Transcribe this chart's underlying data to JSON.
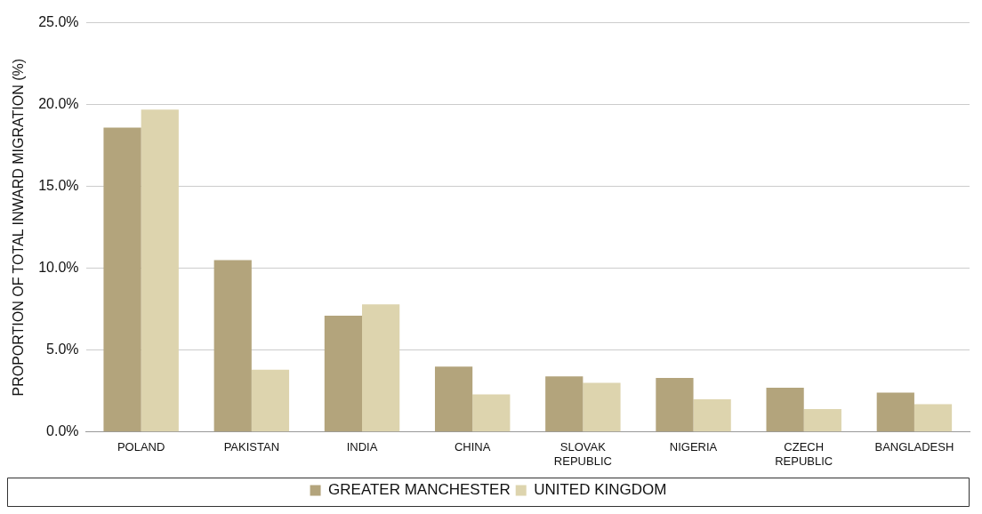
{
  "chart_data": {
    "type": "bar",
    "ylabel": "PROPORTION OF TOTAL INWARD MIGRATION (%)",
    "categories": [
      "POLAND",
      "PAKISTAN",
      "INDIA",
      "CHINA",
      "SLOVAK REPUBLIC",
      "NIGERIA",
      "CZECH REPUBLIC",
      "BANGLADESH"
    ],
    "series": [
      {
        "name": "GREATER MANCHESTER",
        "color": "#b3a47c",
        "values": [
          18.6,
          10.5,
          7.1,
          4.0,
          3.4,
          3.3,
          2.7,
          2.4
        ]
      },
      {
        "name": "UNITED KINGDOM",
        "color": "#ddd4ae",
        "values": [
          19.7,
          3.8,
          7.8,
          2.3,
          3.0,
          2.0,
          1.4,
          1.7
        ]
      }
    ],
    "ylim": [
      0,
      25
    ],
    "yticks": [
      {
        "value": 0,
        "label": "0.0%"
      },
      {
        "value": 5,
        "label": "5.0%"
      },
      {
        "value": 10,
        "label": "10.0%"
      },
      {
        "value": 15,
        "label": "15.0%"
      },
      {
        "value": 20,
        "label": "20.0%"
      },
      {
        "value": 25,
        "label": "25.0%"
      }
    ],
    "grid": "y",
    "legend": "bottom"
  }
}
